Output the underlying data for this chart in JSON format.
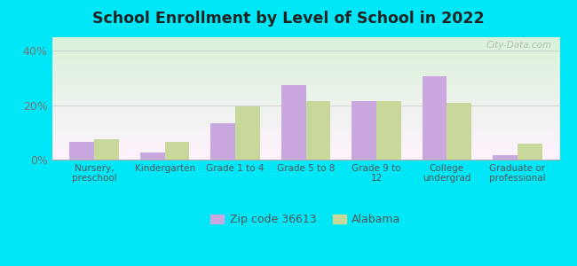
{
  "title": "School Enrollment by Level of School in 2022",
  "categories": [
    "Nursery,\npreschool",
    "Kindergarten",
    "Grade 1 to 4",
    "Grade 5 to 8",
    "Grade 9 to\n12",
    "College\nundergrad",
    "Graduate or\nprofessional"
  ],
  "zip_values": [
    6.5,
    2.5,
    13.5,
    27.5,
    21.5,
    30.5,
    1.5
  ],
  "state_values": [
    7.5,
    6.5,
    19.5,
    21.5,
    21.5,
    21.0,
    6.0
  ],
  "zip_color": "#c9a8e0",
  "state_color": "#c8d89a",
  "background_outer": "#00e8f8",
  "ylim": [
    0,
    45
  ],
  "yticks": [
    0,
    20,
    40
  ],
  "ytick_labels": [
    "0%",
    "20%",
    "40%"
  ],
  "legend_zip": "Zip code 36613",
  "legend_state": "Alabama",
  "watermark": "City-Data.com"
}
